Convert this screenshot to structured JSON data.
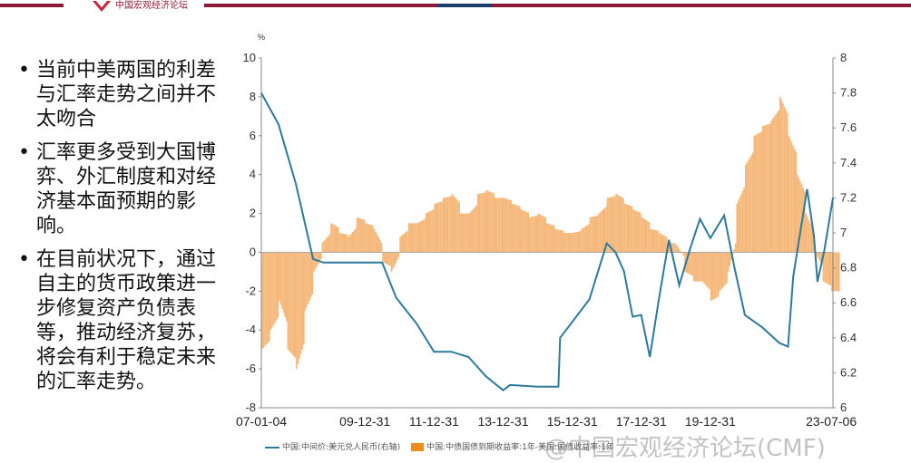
{
  "header": {
    "logo_text": "中国宏观经济论坛"
  },
  "bullets": [
    "当前中美两国的利差与汇率走势之间并不太吻合",
    "汇率更多受到大国博弈、外汇制度和对经济基本面预期的影响。",
    "在目前状况下，通过自主的货币政策进一步修复资产负债表等，推动经济复苏，将会有利于稳定未来的汇率走势。"
  ],
  "watermark": "@中国宏观经济论坛(CMF)",
  "chart_data": {
    "type": "bar+line",
    "left_unit": "%",
    "ylim_left": [
      -8,
      10
    ],
    "yticks_left": [
      -8,
      -6,
      -4,
      -2,
      0,
      2,
      4,
      6,
      8,
      10
    ],
    "ylim_right": [
      6,
      8
    ],
    "yticks_right": [
      "6",
      "6.2",
      "6.4",
      "6.6",
      "6.8",
      "7",
      "7.2",
      "7.4",
      "7.6",
      "7.8",
      "8"
    ],
    "xlim": [
      2007.0,
      2023.55
    ],
    "xtick_labels": [
      {
        "t": 2007.0,
        "label": "07-01-04"
      },
      {
        "t": 2010.0,
        "label": "09-12-31"
      },
      {
        "t": 2012.0,
        "label": "11-12-31"
      },
      {
        "t": 2014.0,
        "label": "13-12-31"
      },
      {
        "t": 2016.0,
        "label": "15-12-31"
      },
      {
        "t": 2018.0,
        "label": "17-12-31"
      },
      {
        "t": 2020.0,
        "label": "19-12-31"
      },
      {
        "t": 2023.5,
        "label": "23-07-06"
      }
    ],
    "legend": [
      "中国:中间价:美元兑人民币(右轴)",
      "中国:中债国债到期收益率:1年-美国:国债收益率:1年"
    ],
    "colors": {
      "line": "#2d7a9c",
      "bar": "#f5b87a",
      "legend_bar": "#f28c1e"
    },
    "line_series": {
      "name": "中国:中间价:美元兑人民币(右轴)",
      "axis": "right",
      "points": [
        [
          2007.0,
          7.8
        ],
        [
          2007.5,
          7.62
        ],
        [
          2008.0,
          7.28
        ],
        [
          2008.5,
          6.85
        ],
        [
          2008.8,
          6.83
        ],
        [
          2010.5,
          6.83
        ],
        [
          2010.9,
          6.63
        ],
        [
          2011.5,
          6.48
        ],
        [
          2012.0,
          6.32
        ],
        [
          2012.5,
          6.32
        ],
        [
          2013.0,
          6.29
        ],
        [
          2013.5,
          6.18
        ],
        [
          2014.0,
          6.1
        ],
        [
          2014.2,
          6.13
        ],
        [
          2015.0,
          6.12
        ],
        [
          2015.6,
          6.12
        ],
        [
          2015.65,
          6.4
        ],
        [
          2016.0,
          6.49
        ],
        [
          2016.5,
          6.62
        ],
        [
          2017.0,
          6.94
        ],
        [
          2017.25,
          6.89
        ],
        [
          2017.5,
          6.78
        ],
        [
          2017.75,
          6.52
        ],
        [
          2018.0,
          6.53
        ],
        [
          2018.25,
          6.29
        ],
        [
          2018.5,
          6.61
        ],
        [
          2018.8,
          6.96
        ],
        [
          2019.1,
          6.7
        ],
        [
          2019.4,
          6.9
        ],
        [
          2019.7,
          7.08
        ],
        [
          2020.0,
          6.97
        ],
        [
          2020.4,
          7.1
        ],
        [
          2020.7,
          6.8
        ],
        [
          2021.0,
          6.53
        ],
        [
          2021.5,
          6.46
        ],
        [
          2022.0,
          6.37
        ],
        [
          2022.25,
          6.35
        ],
        [
          2022.4,
          6.75
        ],
        [
          2022.8,
          7.25
        ],
        [
          2023.0,
          6.98
        ],
        [
          2023.1,
          6.72
        ],
        [
          2023.3,
          6.9
        ],
        [
          2023.55,
          7.2
        ]
      ]
    },
    "bar_series": {
      "name": "中国:中债国债到期收益率:1年-美国:国债收益率:1年",
      "axis": "left",
      "start": 2007.0,
      "step": 0.25,
      "values": [
        -5,
        -4,
        -2.5,
        -5,
        -6,
        -3,
        -1,
        0.5,
        1.5,
        1,
        0.8,
        1.8,
        1.5,
        1.2,
        -0.5,
        -1,
        0.8,
        1.5,
        1.5,
        2,
        2.5,
        2.8,
        3,
        2,
        2,
        3,
        3.2,
        2.8,
        2.8,
        2.5,
        2.2,
        1.8,
        2,
        1.5,
        1.2,
        1,
        1,
        1.2,
        1.8,
        2,
        2.8,
        3,
        2.5,
        2.2,
        1.8,
        1.2,
        1,
        0.5,
        0.4,
        -1,
        -1.5,
        -1.5,
        -2.5,
        -2,
        -1,
        2.5,
        4.5,
        6,
        6.5,
        6.8,
        8,
        6,
        4,
        2,
        0,
        -1.5,
        -2
      ]
    }
  }
}
